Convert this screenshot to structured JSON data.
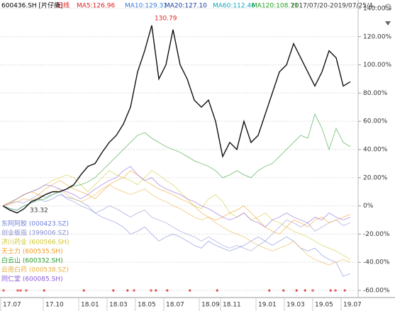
{
  "chart_data": {
    "type": "line",
    "title": "600436.SH [片仔癀]",
    "period": "日线",
    "indicators": [
      {
        "label": "MA5:126.96",
        "color": "#e02020"
      },
      {
        "label": "MA10:129.31",
        "color": "#3a7ad8"
      },
      {
        "label": "MA20:127.10",
        "color": "#1c3c9c"
      },
      {
        "label": "MA60:112.46",
        "color": "#10a8c0"
      },
      {
        "label": "MA120:108.71",
        "color": "#20a020"
      }
    ],
    "date_range": "2017/07/20-2019/07/25/4...",
    "annotations": [
      "130.79",
      "33.32"
    ],
    "categories": [
      "17.07",
      null,
      null,
      null,
      null,
      null,
      "17.10",
      null,
      null,
      null,
      null,
      "18.01",
      null,
      null,
      null,
      "18.03",
      null,
      null,
      null,
      "18.05",
      null,
      null,
      null,
      "18.07",
      null,
      null,
      null,
      null,
      "18.09",
      null,
      null,
      "18.11",
      null,
      null,
      null,
      null,
      "19.01",
      null,
      null,
      null,
      "19.03",
      null,
      null,
      null,
      "19.05",
      null,
      null,
      null,
      "19.07",
      null
    ],
    "ylim": [
      -62,
      144
    ],
    "yticks": [
      {
        "value": 140,
        "label": "140.00%"
      },
      {
        "value": 120,
        "label": "120.00%"
      },
      {
        "value": 100,
        "label": "100.00%"
      },
      {
        "value": 80,
        "label": "80.00%"
      },
      {
        "value": 60,
        "label": "60.00%"
      },
      {
        "value": 40,
        "label": "40.00%"
      },
      {
        "value": 20,
        "label": "20.00%"
      },
      {
        "value": 0,
        "label": "0%"
      },
      {
        "value": -20,
        "label": "-20.00%"
      },
      {
        "value": -40,
        "label": "-40.00%"
      },
      {
        "value": -60,
        "label": "-60.00%"
      }
    ],
    "grid": true,
    "series": [
      {
        "color": "#111111",
        "values": [
          0,
          -3,
          -5,
          -2,
          3,
          5,
          8,
          10,
          10,
          12,
          15,
          22,
          28,
          30,
          38,
          45,
          50,
          58,
          70,
          95,
          110,
          128,
          90,
          100,
          125,
          100,
          90,
          75,
          70,
          75,
          60,
          35,
          45,
          40,
          60,
          45,
          50,
          65,
          80,
          95,
          100,
          115,
          105,
          95,
          85,
          95,
          110,
          105,
          85,
          88
        ]
      },
      {
        "name": "东阿阿胶 (000423.SZ)",
        "color": "#6f7fd8",
        "values": [
          0,
          -2,
          -3,
          0,
          2,
          5,
          3,
          5,
          8,
          6,
          5,
          3,
          0,
          -5,
          -8,
          -10,
          -12,
          -15,
          -20,
          -18,
          -15,
          -20,
          -25,
          -22,
          -20,
          -22,
          -25,
          -28,
          -30,
          -25,
          -28,
          -30,
          -32,
          -30,
          -28,
          -25,
          -22,
          -25,
          -28,
          -25,
          -22,
          -25,
          -30,
          -32,
          -30,
          -35,
          -38,
          -40,
          -50,
          -48
        ]
      },
      {
        "name": "创业板指 (399006.SZ)",
        "color": "#8a8fd0",
        "values": [
          0,
          2,
          3,
          2,
          5,
          8,
          6,
          8,
          10,
          5,
          3,
          0,
          -2,
          -5,
          -3,
          0,
          -2,
          -5,
          -8,
          -5,
          -3,
          -8,
          -10,
          -12,
          -15,
          -18,
          -20,
          -22,
          -25,
          -22,
          -25,
          -28,
          -30,
          -28,
          -30,
          -32,
          -28,
          -25,
          -20,
          -15,
          -10,
          -12,
          -15,
          -12,
          -18,
          -15,
          -12,
          -10,
          -14,
          -12
        ]
      },
      {
        "name": "济川药业 (600566.SH)",
        "color": "#d0c830",
        "values": [
          0,
          3,
          5,
          8,
          10,
          12,
          15,
          18,
          20,
          22,
          20,
          15,
          10,
          15,
          20,
          25,
          22,
          20,
          18,
          15,
          20,
          25,
          22,
          18,
          15,
          10,
          5,
          0,
          -2,
          5,
          8,
          3,
          -5,
          -8,
          -5,
          -10,
          -8,
          -5,
          -10,
          -12,
          -15,
          -18,
          -20,
          -22,
          -25,
          -28,
          -30,
          -32,
          -35,
          -38
        ]
      },
      {
        "name": "天士力 (600535.SH)",
        "color": "#f09a20",
        "values": [
          0,
          2,
          5,
          8,
          10,
          8,
          12,
          15,
          18,
          15,
          12,
          10,
          8,
          5,
          10,
          15,
          18,
          20,
          25,
          22,
          18,
          15,
          12,
          10,
          8,
          5,
          3,
          0,
          -5,
          -8,
          -10,
          -8,
          -5,
          -3,
          0,
          -5,
          -10,
          -15,
          -18,
          -20,
          -15,
          -10,
          -12,
          -15,
          -10,
          -8,
          -12,
          -10,
          -8,
          -6
        ]
      },
      {
        "name": "白云山 (600332.SH)",
        "color": "#2a9a2a",
        "values": [
          0,
          -2,
          -3,
          0,
          2,
          4,
          5,
          8,
          10,
          12,
          14,
          15,
          17,
          20,
          25,
          30,
          35,
          40,
          45,
          50,
          52,
          48,
          45,
          42,
          40,
          38,
          35,
          32,
          30,
          28,
          25,
          20,
          22,
          25,
          22,
          20,
          25,
          28,
          30,
          35,
          40,
          45,
          50,
          48,
          65,
          55,
          40,
          55,
          45,
          42
        ]
      },
      {
        "name": "云南白药 (000538.SZ)",
        "color": "#e8b040",
        "values": [
          0,
          1,
          3,
          5,
          4,
          6,
          8,
          10,
          12,
          8,
          5,
          3,
          5,
          8,
          12,
          15,
          12,
          10,
          8,
          10,
          12,
          8,
          5,
          3,
          0,
          -2,
          -5,
          -8,
          -10,
          -8,
          -12,
          -15,
          -18,
          -20,
          -22,
          -25,
          -28,
          -30,
          -32,
          -30,
          -28,
          -25,
          -30,
          -35,
          -38,
          -40,
          -42,
          -40,
          -38,
          -40
        ]
      },
      {
        "name": "同仁堂 (600085.SH)",
        "color": "#8a5ad8",
        "values": [
          0,
          2,
          5,
          8,
          10,
          12,
          15,
          14,
          12,
          10,
          8,
          5,
          8,
          12,
          15,
          18,
          20,
          25,
          28,
          22,
          18,
          20,
          15,
          12,
          10,
          8,
          5,
          3,
          0,
          -2,
          -5,
          -8,
          -10,
          -8,
          -5,
          -10,
          -12,
          -15,
          -10,
          -8,
          -5,
          -8,
          -10,
          -12,
          -8,
          -10,
          -5,
          -8,
          -10,
          -8
        ]
      }
    ]
  }
}
